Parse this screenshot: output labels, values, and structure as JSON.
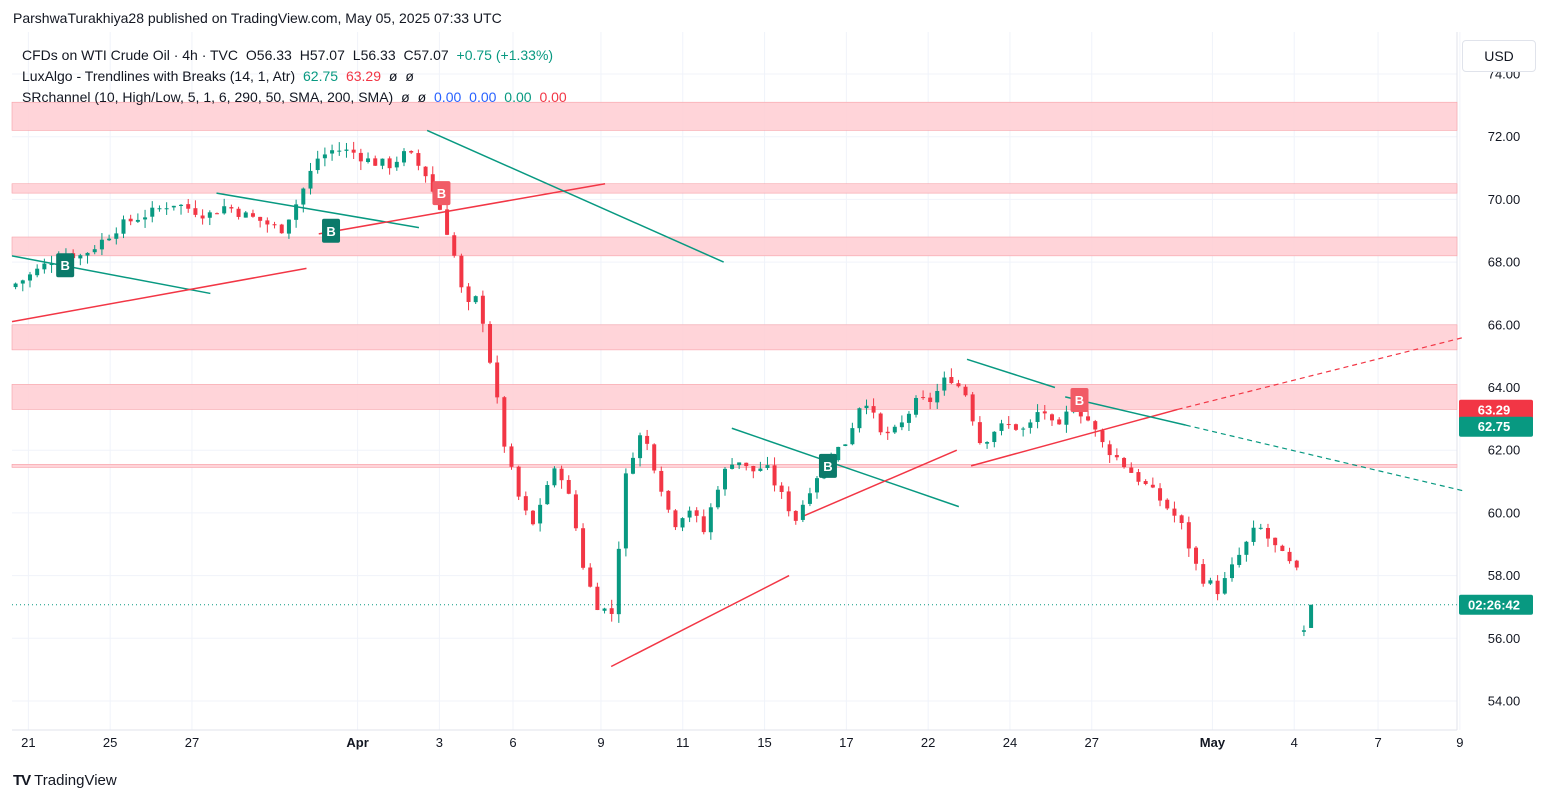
{
  "header": {
    "publisher_line": "ParshwaTurakhiya28 published on TradingView.com, May 05, 2025 07:33 UTC"
  },
  "legend": {
    "symbol": "CFDs on WTI Crude Oil · 4h · TVC",
    "open": "O56.33",
    "high": "H57.07",
    "low": "L56.33",
    "close": "C57.07",
    "change": "+0.75 (+1.33%)",
    "indicator1_name": "LuxAlgo - Trendlines with Breaks (14, 1, Atr)",
    "indicator1_v1": "62.75",
    "indicator1_v2": "63.29",
    "indicator1_v3": "ø",
    "indicator1_v4": "ø",
    "indicator2_name": "SRchannel (10, High/Low, 5, 1, 6, 290, 50, SMA, 200, SMA)",
    "indicator2_v1": "ø",
    "indicator2_v2": "ø",
    "indicator2_v3": "0.00",
    "indicator2_v4": "0.00",
    "indicator2_v5": "0.00",
    "indicator2_v6": "0.00"
  },
  "currency_button": "USD",
  "footer": {
    "logo": "TV",
    "brand": "TradingView"
  },
  "colors": {
    "up": "#089981",
    "down": "#f23645",
    "zone": "#ffcdd2",
    "trend_up": "#f23645",
    "trend_down": "#089981"
  },
  "chart_data": {
    "type": "candlestick",
    "symbol": "CFDs on WTI Crude Oil",
    "timeframe": "4h",
    "ylim": [
      53.2,
      74.5
    ],
    "y_ticks": [
      "54.00",
      "56.00",
      "58.00",
      "60.00",
      "62.00",
      "64.00",
      "66.00",
      "68.00",
      "70.00",
      "72.00",
      "74.00"
    ],
    "x_ticks": [
      {
        "label": "21",
        "t": 0.8
      },
      {
        "label": "25",
        "t": 4.8
      },
      {
        "label": "27",
        "t": 8.8
      },
      {
        "label": "Apr",
        "t": 16.9
      },
      {
        "label": "3",
        "t": 20.9
      },
      {
        "label": "6",
        "t": 24.5
      },
      {
        "label": "9",
        "t": 28.8
      },
      {
        "label": "11",
        "t": 32.8
      },
      {
        "label": "15",
        "t": 36.8
      },
      {
        "label": "17",
        "t": 40.8
      },
      {
        "label": "22",
        "t": 44.8
      },
      {
        "label": "24",
        "t": 48.8
      },
      {
        "label": "27",
        "t": 52.8
      },
      {
        "label": "May",
        "t": 58.7
      },
      {
        "label": "4",
        "t": 62.7
      },
      {
        "label": "7",
        "t": 66.8
      },
      {
        "label": "9",
        "t": 70.8
      }
    ],
    "sr_zones": [
      {
        "low": 72.2,
        "high": 73.1
      },
      {
        "low": 70.2,
        "high": 70.5
      },
      {
        "low": 68.2,
        "high": 68.8
      },
      {
        "low": 65.2,
        "high": 66.0
      },
      {
        "low": 63.3,
        "high": 64.1
      },
      {
        "low": 61.45,
        "high": 61.55
      }
    ],
    "trendlines": [
      {
        "color": "down",
        "t1": 0.0,
        "p1": 68.2,
        "t2": 9.7,
        "p2": 67.0
      },
      {
        "color": "up",
        "t1": 0.0,
        "p1": 66.1,
        "t2": 14.4,
        "p2": 67.8
      },
      {
        "color": "down",
        "t1": 10.0,
        "p1": 70.2,
        "t2": 19.9,
        "p2": 69.1
      },
      {
        "color": "up",
        "t1": 15.0,
        "p1": 68.9,
        "t2": 29.0,
        "p2": 70.5
      },
      {
        "color": "down",
        "t1": 20.3,
        "p1": 72.2,
        "t2": 34.8,
        "p2": 68.0
      },
      {
        "color": "up",
        "t1": 29.3,
        "p1": 55.1,
        "t2": 38.0,
        "p2": 58.0
      },
      {
        "color": "down",
        "t1": 35.2,
        "p1": 62.7,
        "t2": 46.3,
        "p2": 60.2
      },
      {
        "color": "up",
        "t1": 38.7,
        "p1": 59.9,
        "t2": 46.2,
        "p2": 62.0
      },
      {
        "color": "down",
        "t1": 46.7,
        "p1": 64.9,
        "t2": 51.0,
        "p2": 64.0
      },
      {
        "color": "up",
        "t1": 46.9,
        "p1": 61.5,
        "t2": 57.0,
        "p2": 63.3
      },
      {
        "color": "up",
        "t1": 57.0,
        "p1": 63.3,
        "t2": 71.0,
        "p2": 65.6,
        "dashed": true
      },
      {
        "color": "down",
        "t1": 51.5,
        "p1": 63.7,
        "t2": 57.4,
        "p2": 62.8
      },
      {
        "color": "down",
        "t1": 57.4,
        "p1": 62.8,
        "t2": 71.0,
        "p2": 60.7,
        "dashed": true
      }
    ],
    "break_markers": [
      {
        "label": "B",
        "t": 2.6,
        "p": 67.9,
        "type": "up"
      },
      {
        "label": "B",
        "t": 15.6,
        "p": 69.0,
        "type": "up"
      },
      {
        "label": "B",
        "t": 21.0,
        "p": 70.2,
        "type": "down"
      },
      {
        "label": "B",
        "t": 39.9,
        "p": 61.5,
        "type": "up"
      },
      {
        "label": "B",
        "t": 52.2,
        "p": 63.6,
        "type": "down"
      }
    ],
    "price_labels": [
      {
        "label": "63.29",
        "p": 63.29,
        "type": "down"
      },
      {
        "label": "62.75",
        "p": 62.75,
        "type": "up"
      },
      {
        "label": "02:26:42",
        "p": 57.07,
        "type": "up"
      }
    ],
    "last_price": 57.07,
    "segments": [
      {
        "t_start": 0.0,
        "t_end": 20.4,
        "start": 67.2,
        "points": [
          67.5,
          67.9,
          68.3,
          68.2,
          68.6,
          69.1,
          69.4,
          69.6,
          69.9,
          69.7,
          69.5,
          69.8,
          69.5,
          69.3,
          69.0,
          70.0,
          71.3,
          71.6,
          71.5,
          71.2,
          71.1,
          71.5,
          70.8
        ]
      },
      {
        "t_start": 20.4,
        "t_end": 29.5,
        "start": 70.8,
        "points": [
          69.8,
          68.5,
          66.5,
          66.9,
          64.5,
          62.0,
          60.5,
          59.5,
          60.8,
          61.5,
          60.2,
          58.0,
          57.0,
          56.8
        ]
      },
      {
        "t_start": 29.5,
        "t_end": 38.5,
        "start": 56.8,
        "points": [
          61.5,
          62.6,
          61.2,
          59.6,
          60.2,
          59.4,
          61.0,
          61.8,
          61.3,
          61.5,
          60.6,
          59.8
        ]
      },
      {
        "t_start": 38.5,
        "t_end": 46.8,
        "start": 59.8,
        "points": [
          61.0,
          61.8,
          62.3,
          63.8,
          62.5,
          62.6,
          63.5,
          63.6,
          64.4,
          63.8
        ]
      },
      {
        "t_start": 46.8,
        "t_end": 53.5,
        "start": 63.8,
        "points": [
          62.2,
          62.7,
          62.8,
          62.6,
          63.4,
          62.5,
          63.5,
          63.0,
          62.2
        ]
      },
      {
        "t_start": 53.5,
        "t_end": 63.0,
        "start": 62.2,
        "points": [
          61.6,
          61.0,
          60.4,
          59.7,
          58.0,
          57.5,
          58.6,
          59.6,
          58.8,
          58.1
        ]
      },
      {
        "t_start": 63.0,
        "t_end": 63.7,
        "start": 56.2,
        "points": [
          56.33,
          57.07
        ]
      }
    ]
  }
}
